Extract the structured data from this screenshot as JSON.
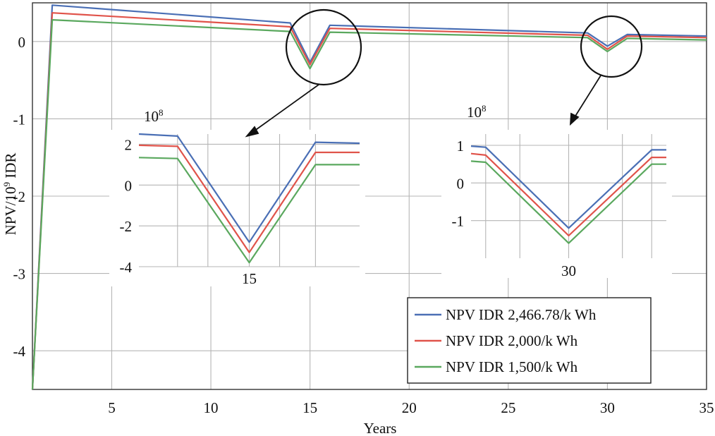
{
  "chart_data": [
    {
      "id": "main",
      "type": "line",
      "title": "",
      "xlabel": "Years",
      "ylabel_base": "NPV/10",
      "ylabel_exp": "9",
      "ylabel_unit": " IDR",
      "xlim": [
        1,
        35
      ],
      "ylim": [
        -4.5,
        0.5
      ],
      "x_ticks": [
        5,
        10,
        15,
        20,
        25,
        30,
        35
      ],
      "y_ticks": [
        0,
        -1,
        -2,
        -3,
        -4
      ],
      "grid": true,
      "legend_position": "bottom-right",
      "series": [
        {
          "name": "NPV IDR 2,466.78/k Wh",
          "color": "#4a6fb5",
          "points": [
            [
              1,
              -4.5
            ],
            [
              2,
              0.47
            ],
            [
              14,
              0.24
            ],
            [
              15,
              -0.27
            ],
            [
              16,
              0.21
            ],
            [
              29,
              0.11
            ],
            [
              30,
              -0.06
            ],
            [
              31,
              0.09
            ],
            [
              35,
              0.07
            ]
          ]
        },
        {
          "name": "NPV IDR 2,000/k Wh",
          "color": "#e0534a",
          "points": [
            [
              1,
              -4.5
            ],
            [
              2,
              0.37
            ],
            [
              14,
              0.19
            ],
            [
              15,
              -0.3
            ],
            [
              16,
              0.17
            ],
            [
              29,
              0.08
            ],
            [
              30,
              -0.1
            ],
            [
              31,
              0.07
            ],
            [
              35,
              0.05
            ]
          ]
        },
        {
          "name": "NPV IDR 1,500/k Wh",
          "color": "#5aa85e",
          "points": [
            [
              1,
              -4.5
            ],
            [
              2,
              0.28
            ],
            [
              14,
              0.13
            ],
            [
              15,
              -0.35
            ],
            [
              16,
              0.12
            ],
            [
              29,
              0.05
            ],
            [
              30,
              -0.13
            ],
            [
              31,
              0.04
            ],
            [
              35,
              0.02
            ]
          ]
        }
      ]
    },
    {
      "id": "inset-15",
      "type": "line",
      "multiplier_base": "10",
      "multiplier_exp": "8",
      "x_tick_labels": [
        "15"
      ],
      "xlim": [
        13,
        17
      ],
      "ylim": [
        -4,
        2.5
      ],
      "y_ticks": [
        2,
        0,
        -2,
        -4
      ],
      "grid": true,
      "series": [
        {
          "name": "NPV IDR 2,466.78/k Wh",
          "color": "#4a6fb5",
          "points": [
            [
              13,
              2.5
            ],
            [
              13.7,
              2.4
            ],
            [
              15,
              -2.8
            ],
            [
              16.2,
              2.1
            ],
            [
              17,
              2.05
            ]
          ]
        },
        {
          "name": "NPV IDR 2,000/k Wh",
          "color": "#e0534a",
          "points": [
            [
              13,
              1.95
            ],
            [
              13.7,
              1.9
            ],
            [
              15,
              -3.3
            ],
            [
              16.2,
              1.6
            ],
            [
              17,
              1.6
            ]
          ]
        },
        {
          "name": "NPV IDR 1,500/k Wh",
          "color": "#5aa85e",
          "points": [
            [
              13,
              1.35
            ],
            [
              13.7,
              1.3
            ],
            [
              15,
              -3.8
            ],
            [
              16.2,
              1.0
            ],
            [
              17,
              1.0
            ]
          ]
        }
      ]
    },
    {
      "id": "inset-30",
      "type": "line",
      "multiplier_base": "10",
      "multiplier_exp": "8",
      "x_tick_labels": [
        "30"
      ],
      "xlim": [
        28,
        32
      ],
      "ylim": [
        -2,
        1.3
      ],
      "y_ticks": [
        1,
        0,
        -1
      ],
      "grid": true,
      "series": [
        {
          "name": "NPV IDR 2,466.78/k Wh",
          "color": "#4a6fb5",
          "points": [
            [
              28,
              0.98
            ],
            [
              28.3,
              0.95
            ],
            [
              30,
              -1.2
            ],
            [
              31.7,
              0.88
            ],
            [
              32,
              0.88
            ]
          ]
        },
        {
          "name": "NPV IDR 2,000/k Wh",
          "color": "#e0534a",
          "points": [
            [
              28,
              0.78
            ],
            [
              28.3,
              0.74
            ],
            [
              30,
              -1.4
            ],
            [
              31.7,
              0.68
            ],
            [
              32,
              0.68
            ]
          ]
        },
        {
          "name": "NPV IDR 1,500/k Wh",
          "color": "#5aa85e",
          "points": [
            [
              28,
              0.58
            ],
            [
              28.3,
              0.55
            ],
            [
              30,
              -1.6
            ],
            [
              31.7,
              0.5
            ],
            [
              32,
              0.5
            ]
          ]
        }
      ]
    }
  ]
}
